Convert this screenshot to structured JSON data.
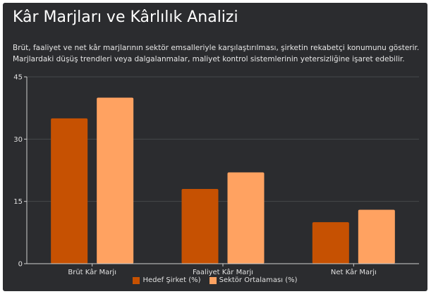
{
  "header": {
    "title": "Kâr Marjları ve Kârlılık Analizi",
    "subtitle": "Brüt, faaliyet ve net kâr marjlarının sektör emsalleriyle karşılaştırılması, şirketin rekabetçi konumunu gösterir. Marjlardaki düşüş trendleri veya dalgalanmalar, maliyet kontrol sistemlerinin yetersizliğine işaret edebilir."
  },
  "chart_data": {
    "type": "bar",
    "title": "Kâr Marjları ve Kârlılık Analizi",
    "xlabel": "",
    "ylabel": "",
    "categories": [
      "Brüt Kâr Marjı",
      "Faaliyet Kâr Marjı",
      "Net Kâr Marjı"
    ],
    "series": [
      {
        "name": "Hedef Şirket (%)",
        "values": [
          35,
          18,
          10
        ],
        "color": "#c65102"
      },
      {
        "name": "Sektör Ortalaması (%)",
        "values": [
          40,
          22,
          13
        ],
        "color": "#ffa261"
      }
    ],
    "ylim": [
      0,
      45
    ],
    "yticks": [
      0,
      15,
      30,
      45
    ],
    "grid": true,
    "legend_position": "bottom"
  }
}
